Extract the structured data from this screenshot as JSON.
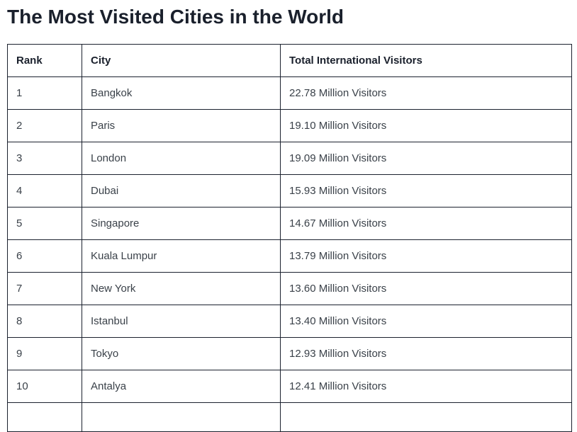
{
  "page": {
    "title": "The Most Visited Cities in the World"
  },
  "table": {
    "columns": [
      "Rank",
      "City",
      "Total International Visitors"
    ],
    "rows": [
      {
        "rank": "1",
        "city": "Bangkok",
        "visitors": "22.78 Million Visitors"
      },
      {
        "rank": "2",
        "city": "Paris",
        "visitors": "19.10 Million Visitors"
      },
      {
        "rank": "3",
        "city": "London",
        "visitors": "19.09 Million Visitors"
      },
      {
        "rank": "4",
        "city": "Dubai",
        "visitors": "15.93 Million Visitors"
      },
      {
        "rank": "5",
        "city": "Singapore",
        "visitors": "14.67 Million Visitors"
      },
      {
        "rank": "6",
        "city": "Kuala Lumpur",
        "visitors": "13.79 Million Visitors"
      },
      {
        "rank": "7",
        "city": "New York",
        "visitors": "13.60 Million Visitors"
      },
      {
        "rank": "8",
        "city": "Istanbul",
        "visitors": "13.40 Million Visitors"
      },
      {
        "rank": "9",
        "city": "Tokyo",
        "visitors": "12.93 Million Visitors"
      },
      {
        "rank": "10",
        "city": "Antalya",
        "visitors": "12.41 Million Visitors"
      }
    ]
  },
  "colors": {
    "title_text": "#1a202c",
    "table_border": "#1b212e",
    "header_text": "#1a202c",
    "body_text": "#3a4149",
    "background": "#ffffff"
  }
}
